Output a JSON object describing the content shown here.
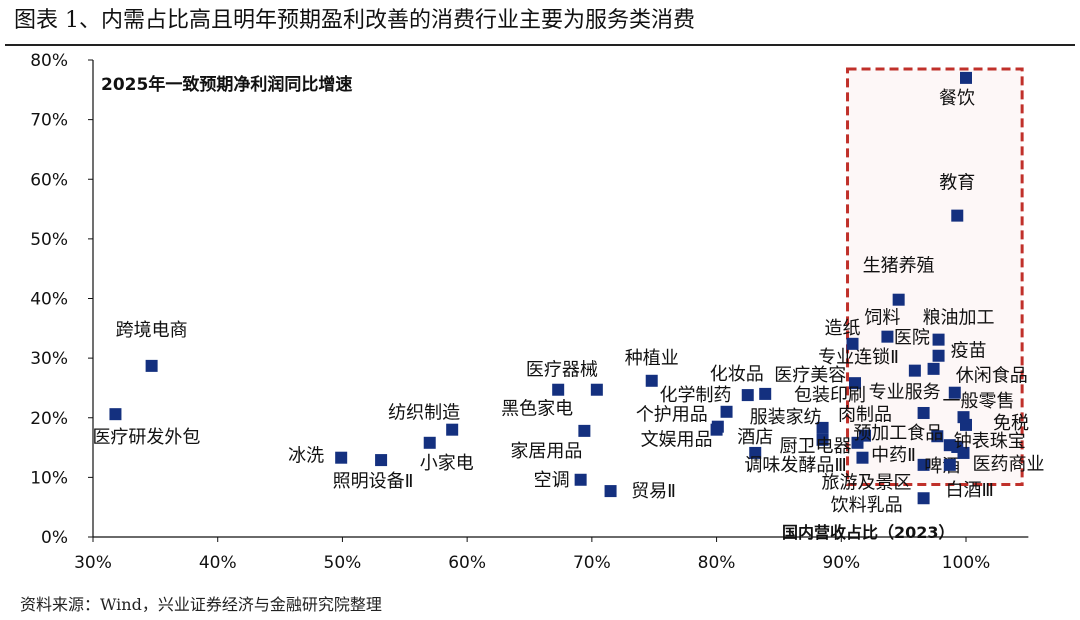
{
  "header": {
    "title": "图表 1、内需占比高且明年预期盈利改善的消费行业主要为服务类消费"
  },
  "footer": {
    "source": "资料来源：Wind，兴业证券经济与金融研究院整理"
  },
  "chart_data": {
    "type": "scatter",
    "title": "图表 1、内需占比高且明年预期盈利改善的消费行业主要为服务类消费",
    "ylabel": "2025年一致预期净利润同比增速",
    "xlabel": "国内营收占比（2023）",
    "xlim": [
      30,
      105
    ],
    "ylim": [
      0,
      80
    ],
    "xticks": [
      "30%",
      "40%",
      "50%",
      "60%",
      "70%",
      "80%",
      "90%",
      "100%"
    ],
    "yticks": [
      "0%",
      "10%",
      "20%",
      "30%",
      "40%",
      "50%",
      "60%",
      "70%",
      "80%"
    ],
    "grid": false,
    "marker_color": "#14307f",
    "highlight_box_color": "#c0302a",
    "highlight_region": {
      "x": [
        90.5,
        104.5
      ],
      "y": [
        8.8,
        78.5
      ]
    },
    "points": [
      {
        "label": "跨境电商",
        "x": 34.7,
        "y": 28.7
      },
      {
        "label": "医疗研发外包",
        "x": 31.8,
        "y": 20.6
      },
      {
        "label": "冰洗",
        "x": 49.9,
        "y": 13.3
      },
      {
        "label": "照明设备Ⅱ",
        "x": 53.1,
        "y": 12.9
      },
      {
        "label": "小家电",
        "x": 57.0,
        "y": 15.8
      },
      {
        "label": "纺织制造",
        "x": 58.8,
        "y": 18.0
      },
      {
        "label": "空调",
        "x": 69.1,
        "y": 9.6
      },
      {
        "label": "贸易Ⅱ",
        "x": 71.5,
        "y": 7.7
      },
      {
        "label": "家居用品",
        "x": 69.4,
        "y": 17.8
      },
      {
        "label": "黑色家电",
        "x": 67.3,
        "y": 24.7
      },
      {
        "label": "医疗器械",
        "x": 70.4,
        "y": 24.7
      },
      {
        "label": "种植业",
        "x": 74.8,
        "y": 26.2
      },
      {
        "label": "化学制药",
        "x": 80.8,
        "y": 21.0
      },
      {
        "label": "个护用品",
        "x": 80.1,
        "y": 18.5
      },
      {
        "label": "文娱用品",
        "x": 80.0,
        "y": 18.0
      },
      {
        "label": "化妆品",
        "x": 82.5,
        "y": 23.8
      },
      {
        "label": "医疗美容",
        "x": 83.9,
        "y": 24.0
      },
      {
        "label": "服装家纺",
        "x": 88.5,
        "y": 18.3
      },
      {
        "label": "酒店",
        "x": 83.1,
        "y": 14.1
      },
      {
        "label": "调味发酵品Ⅲ",
        "x": 88.5,
        "y": 16.3
      },
      {
        "label": "厨卫电器",
        "x": 91.3,
        "y": 15.8
      },
      {
        "label": "包装印刷",
        "x": 91.1,
        "y": 25.8
      },
      {
        "label": "肉制品",
        "x": 91.9,
        "y": 17.0
      },
      {
        "label": "预加工食品",
        "x": 97.7,
        "y": 16.9
      },
      {
        "label": "旅游及景区",
        "x": 91.7,
        "y": 13.3
      },
      {
        "label": "饮料乳品",
        "x": 96.6,
        "y": 6.5
      },
      {
        "label": "中药Ⅱ",
        "x": 96.6,
        "y": 12.1
      },
      {
        "label": "啤酒",
        "x": 99.3,
        "y": 15.1
      },
      {
        "label": "白酒Ⅲ",
        "x": 98.7,
        "y": 12.1
      },
      {
        "label": "医药商业",
        "x": 99.8,
        "y": 14.1
      },
      {
        "label": "钟表珠宝",
        "x": 98.7,
        "y": 15.4
      },
      {
        "label": "免税",
        "x": 100.0,
        "y": 18.8
      },
      {
        "label": "一般零售",
        "x": 99.8,
        "y": 20.1
      },
      {
        "label": "专业服务",
        "x": 96.6,
        "y": 20.8
      },
      {
        "label": "休闲食品",
        "x": 99.1,
        "y": 24.2
      },
      {
        "label": "专业连锁Ⅱ",
        "x": 97.4,
        "y": 28.2
      },
      {
        "label": "疫苗",
        "x": 97.8,
        "y": 30.4
      },
      {
        "label": "医院",
        "x": 95.9,
        "y": 27.9
      },
      {
        "label": "粮油加工",
        "x": 97.8,
        "y": 33.1
      },
      {
        "label": "饲料",
        "x": 93.7,
        "y": 33.6
      },
      {
        "label": "造纸",
        "x": 90.9,
        "y": 32.4
      },
      {
        "label": "生猪养殖",
        "x": 94.6,
        "y": 39.8
      },
      {
        "label": "教育",
        "x": 99.3,
        "y": 53.9
      },
      {
        "label": "餐饮",
        "x": 100.0,
        "y": 77.0
      }
    ]
  }
}
